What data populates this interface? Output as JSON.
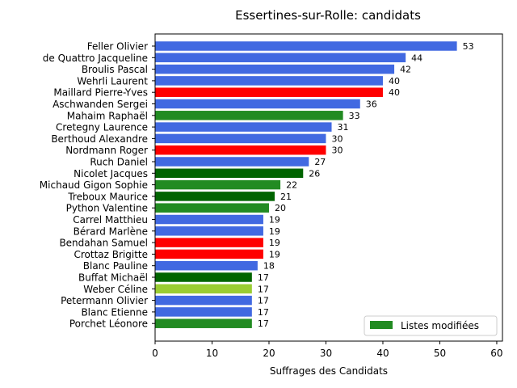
{
  "chart_data": {
    "type": "bar",
    "orientation": "horizontal",
    "title": "Essertines-sur-Rolle: candidats",
    "xlabel": "Suffrages des Candidats",
    "ylabel": "",
    "xlim": [
      0,
      61
    ],
    "x_ticks": [
      0,
      10,
      20,
      30,
      40,
      50,
      60
    ],
    "grid": false,
    "legend_position": "lower-right",
    "legend": [
      {
        "label": "Listes modifiées",
        "color": "#228b22"
      }
    ],
    "categories": [
      "Feller Olivier",
      "de Quattro Jacqueline",
      "Broulis Pascal",
      "Wehrli Laurent",
      "Maillard Pierre-Yves",
      "Aschwanden Sergei",
      "Mahaim Raphaël",
      "Cretegny Laurence",
      "Berthoud Alexandre",
      "Nordmann Roger",
      "Ruch Daniel",
      "Nicolet Jacques",
      "Michaud Gigon Sophie",
      "Treboux Maurice",
      "Python Valentine",
      "Carrel Matthieu",
      "Bérard Marlène",
      "Bendahan Samuel",
      "Crottaz Brigitte",
      "Blanc Pauline",
      "Buffat Michaël",
      "Weber Céline",
      "Petermann Olivier",
      "Blanc Etienne",
      "Porchet Léonore"
    ],
    "values": [
      53,
      44,
      42,
      40,
      40,
      36,
      33,
      31,
      30,
      30,
      27,
      26,
      22,
      21,
      20,
      19,
      19,
      19,
      19,
      18,
      17,
      17,
      17,
      17,
      17
    ],
    "colors": [
      "#4169e1",
      "#4169e1",
      "#4169e1",
      "#4169e1",
      "#ff0000",
      "#4169e1",
      "#228b22",
      "#4169e1",
      "#4169e1",
      "#ff0000",
      "#4169e1",
      "#006400",
      "#228b22",
      "#006400",
      "#228b22",
      "#4169e1",
      "#4169e1",
      "#ff0000",
      "#ff0000",
      "#4169e1",
      "#006400",
      "#9acd32",
      "#4169e1",
      "#4169e1",
      "#228b22"
    ]
  }
}
